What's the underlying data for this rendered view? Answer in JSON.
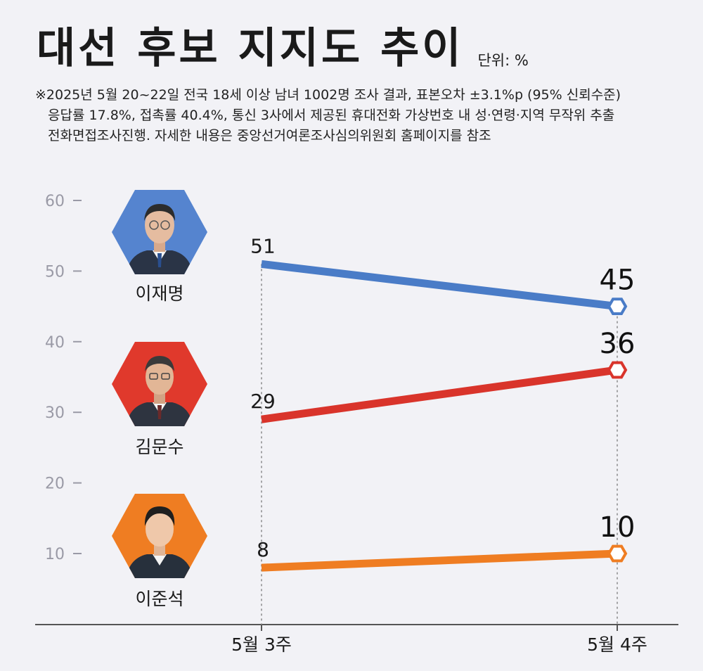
{
  "title": "대선 후보 지지도 추이",
  "unit_label": "단위: %",
  "note_lines": [
    "※2025년 5월 20~22일 전국 18세 이상 남녀 1002명 조사 결과, 표본오차 ±3.1%p (95% 신뢰수준)",
    "응답률 17.8%, 접촉률 40.4%, 통신 3사에서 제공된 휴대전화 가상번호 내 성·연령·지역 무작위 추출",
    "전화면접조사진행. 자세한 내용은 중앙선거여론조사심의위원회 홈페이지를 참조"
  ],
  "candidates": [
    {
      "name": "이재명",
      "color": "#4a7cc7",
      "bg": "#5584cf"
    },
    {
      "name": "김문수",
      "color": "#d9342b",
      "bg": "#e0392c"
    },
    {
      "name": "이준석",
      "color": "#ef7d22",
      "bg": "#ef7d22"
    }
  ],
  "chart_data": {
    "type": "line",
    "categories": [
      "5월 3주",
      "5월 4주"
    ],
    "series": [
      {
        "name": "이재명",
        "values": [
          51,
          45
        ],
        "color": "#4a7cc7"
      },
      {
        "name": "김문수",
        "values": [
          29,
          36
        ],
        "color": "#d9342b"
      },
      {
        "name": "이준석",
        "values": [
          8,
          10
        ],
        "color": "#ef7d22"
      }
    ],
    "ylim": [
      10,
      60
    ],
    "yticks": [
      60,
      50,
      40,
      30,
      20,
      10
    ],
    "xlabel": "",
    "ylabel": "",
    "grid": false,
    "legend": "left"
  }
}
